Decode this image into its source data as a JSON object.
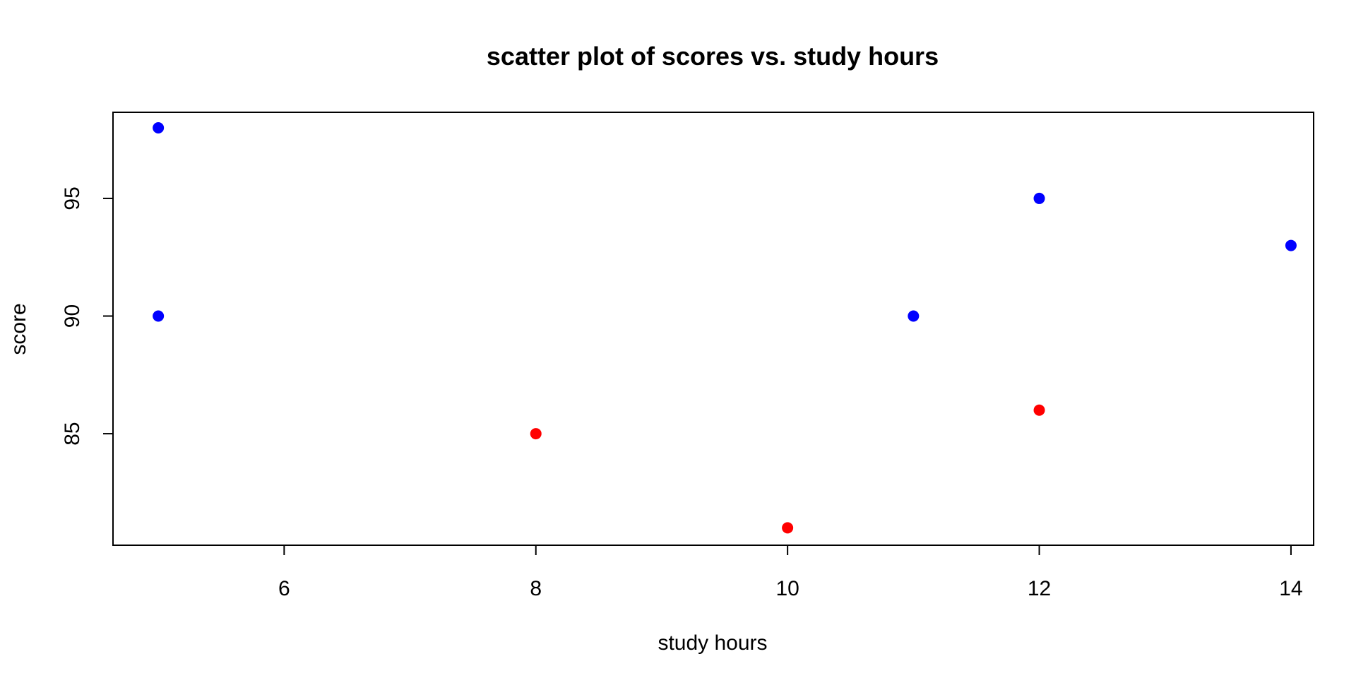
{
  "chart_data": {
    "type": "scatter",
    "title": "scatter plot of scores vs. study hours",
    "xlabel": "study hours",
    "ylabel": "score",
    "xlim": [
      4.64,
      14.18
    ],
    "ylim": [
      80.26,
      98.66
    ],
    "x_ticks": [
      6,
      8,
      10,
      12,
      14
    ],
    "y_ticks": [
      85,
      90,
      95
    ],
    "grid": false,
    "legend": "none",
    "points": [
      {
        "x": 5,
        "y": 98,
        "color": "#0000ff"
      },
      {
        "x": 5,
        "y": 90,
        "color": "#0000ff"
      },
      {
        "x": 8,
        "y": 85,
        "color": "#ff0000"
      },
      {
        "x": 10,
        "y": 81,
        "color": "#ff0000"
      },
      {
        "x": 11,
        "y": 90,
        "color": "#0000ff"
      },
      {
        "x": 12,
        "y": 95,
        "color": "#0000ff"
      },
      {
        "x": 12,
        "y": 86,
        "color": "#ff0000"
      },
      {
        "x": 14,
        "y": 93,
        "color": "#0000ff"
      }
    ]
  }
}
